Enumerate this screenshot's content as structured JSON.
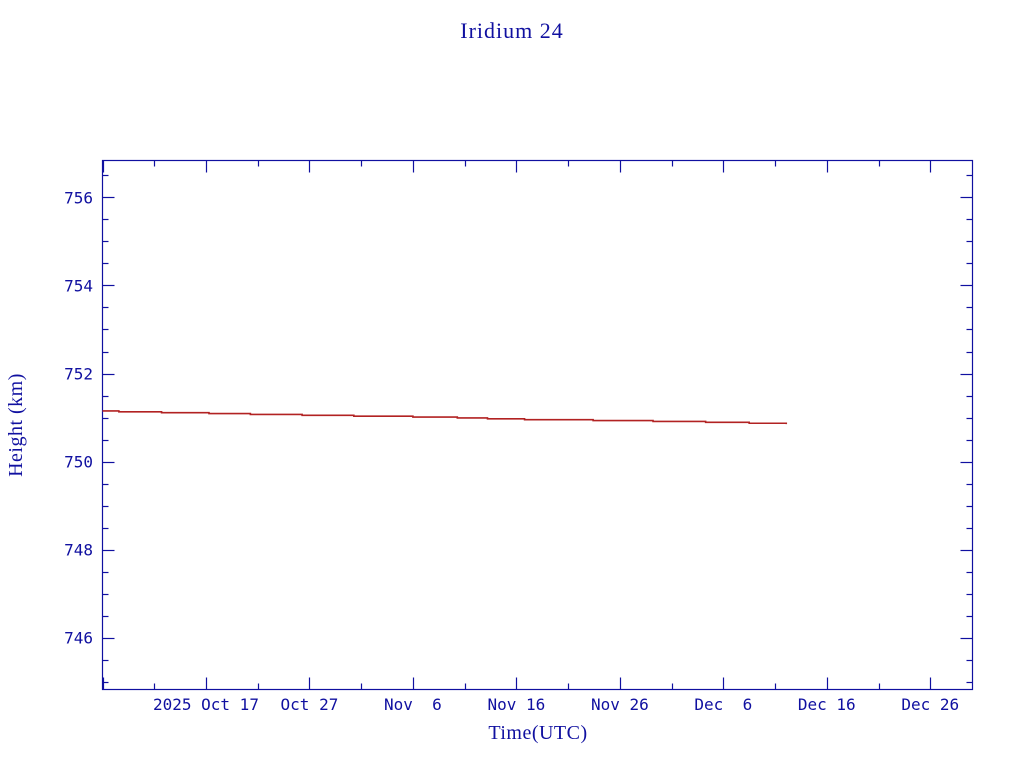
{
  "chart_data": {
    "type": "line",
    "title": "Iridium 24",
    "xlabel": "Time(UTC)",
    "ylabel": "Height (km)",
    "xlim": [
      "2025-10-07T00:00:00Z",
      "2025-12-30T02:00:00Z"
    ],
    "ylim": [
      744.82,
      756.84
    ],
    "x_ticks": [
      {
        "date": "2025-10-17",
        "label": "2025 Oct 17"
      },
      {
        "date": "2025-10-27",
        "label": "Oct 27"
      },
      {
        "date": "2025-11-06",
        "label": "Nov  6"
      },
      {
        "date": "2025-11-16",
        "label": "Nov 16"
      },
      {
        "date": "2025-11-26",
        "label": "Nov 26"
      },
      {
        "date": "2025-12-06",
        "label": "Dec  6"
      },
      {
        "date": "2025-12-16",
        "label": "Dec 16"
      },
      {
        "date": "2025-12-26",
        "label": "Dec 26"
      }
    ],
    "x_minor_step_days": 5,
    "y_ticks": [
      746,
      748,
      750,
      752,
      754,
      756
    ],
    "y_minor_step": 0.5,
    "grid": false,
    "line_style": "step",
    "series": [
      {
        "color": "#b22222",
        "points": [
          [
            "2025-10-07T00:00:00Z",
            751.15
          ],
          [
            "2025-10-08T14:00:00Z",
            751.13
          ],
          [
            "2025-10-12T17:00:00Z",
            751.11
          ],
          [
            "2025-10-17T07:00:00Z",
            751.09
          ],
          [
            "2025-10-21T07:00:00Z",
            751.07
          ],
          [
            "2025-10-26T07:00:00Z",
            751.05
          ],
          [
            "2025-10-31T07:00:00Z",
            751.03
          ],
          [
            "2025-11-06T00:00:00Z",
            751.01
          ],
          [
            "2025-11-10T07:00:00Z",
            750.99
          ],
          [
            "2025-11-13T05:00:00Z",
            750.97
          ],
          [
            "2025-11-16T19:00:00Z",
            750.95
          ],
          [
            "2025-11-23T10:00:00Z",
            750.93
          ],
          [
            "2025-11-29T05:00:00Z",
            750.91
          ],
          [
            "2025-12-04T07:00:00Z",
            750.89
          ],
          [
            "2025-12-08T12:00:00Z",
            750.87
          ],
          [
            "2025-12-12T02:00:00Z",
            750.85
          ]
        ]
      }
    ]
  },
  "colors": {
    "axes": "#1010a0",
    "line": "#b22222"
  }
}
